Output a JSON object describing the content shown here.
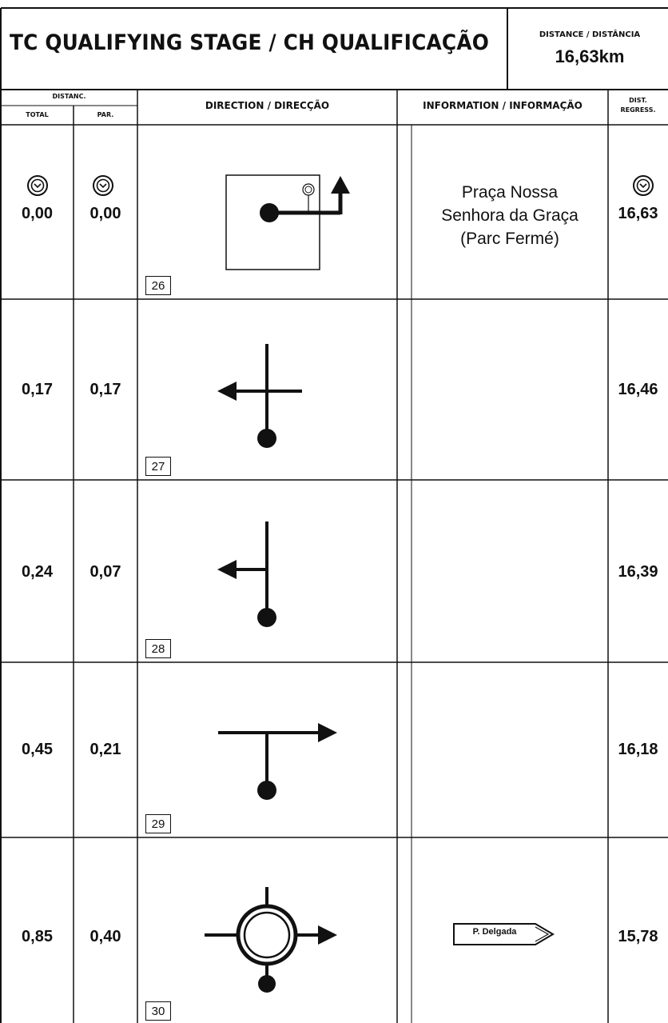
{
  "header": {
    "title": "TC QUALIFYING STAGE / CH QUALIFICAÇÃO",
    "distance_label": "DISTANCE / DISTÂNCIA",
    "distance_value": "16,63km"
  },
  "columns": {
    "distanc": "DISTANC.",
    "total": "TOTAL",
    "par": "PAR.",
    "direction": "DIRECTION / DIRECÇÃO",
    "information": "INFORMATION / INFORMAÇÃO",
    "dist_regress_1": "DIST.",
    "dist_regress_2": "REGRESS."
  },
  "rows": [
    {
      "total": "0,00",
      "par": "0,00",
      "regress": "16,63",
      "box": "26",
      "info_lines": [
        "Praça Nossa",
        "Senhora da Graça",
        "(Parc Fermé)"
      ],
      "diagram": "start-box-right-then-up-icon",
      "clock": true
    },
    {
      "total": "0,17",
      "par": "0,17",
      "regress": "16,46",
      "box": "27",
      "diagram": "crossroads-left-icon"
    },
    {
      "total": "0,24",
      "par": "0,07",
      "regress": "16,39",
      "box": "28",
      "diagram": "junction-left-icon"
    },
    {
      "total": "0,45",
      "par": "0,21",
      "regress": "16,18",
      "box": "29",
      "diagram": "t-junction-right-icon"
    },
    {
      "total": "0,85",
      "par": "0,40",
      "regress": "15,78",
      "box": "30",
      "sign": "P. Delgada",
      "diagram": "roundabout-right-icon"
    }
  ]
}
